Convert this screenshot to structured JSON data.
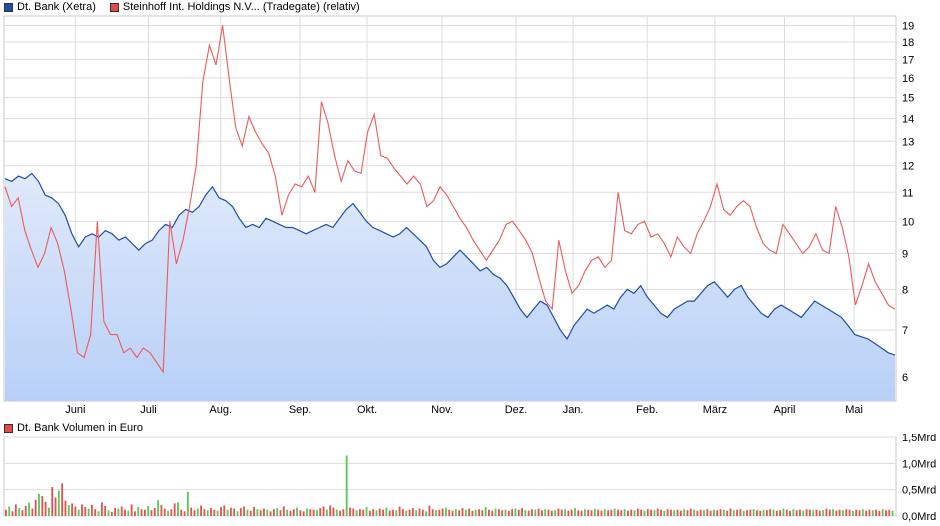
{
  "legend_top": [
    {
      "label": "Dt. Bank (Xetra)",
      "color": "#1f4ea8"
    },
    {
      "label": "Steinhoff Int. Holdings N.V... (Tradegate) (relativ)",
      "color": "#e34a4a"
    }
  ],
  "legend_bottom": [
    {
      "label": "Dt. Bank Volumen in Euro",
      "color": "#e34a4a"
    }
  ],
  "colors": {
    "primary_line": "#1f4ea8",
    "primary_fill_top": "#dfe9fb",
    "primary_fill_bottom": "#b8d0f7",
    "secondary_line": "#ee5a5a",
    "vol_red": "#e05252",
    "vol_green": "#58c858",
    "grid": "#dddddd"
  },
  "chart_data": [
    {
      "type": "line",
      "y_ticks": [
        6,
        7,
        8,
        9,
        10,
        11,
        12,
        13,
        14,
        15,
        16,
        17,
        18,
        19
      ],
      "y_scale": "log",
      "ylim": [
        5.55,
        19.6
      ],
      "month_labels": [
        "Juni",
        "Juli",
        "Aug.",
        "Sep.",
        "Okt.",
        "Nov.",
        "Dez.",
        "Jan.",
        "Feb.",
        "März",
        "April",
        "Mai"
      ],
      "month_positions": [
        0.08,
        0.162,
        0.243,
        0.332,
        0.407,
        0.491,
        0.574,
        0.638,
        0.721,
        0.797,
        0.875,
        0.953
      ],
      "series": [
        {
          "name": "Dt. Bank (Xetra)",
          "area": true,
          "values": [
            11.5,
            11.4,
            11.6,
            11.5,
            11.7,
            11.4,
            10.9,
            10.8,
            10.6,
            10.2,
            9.6,
            9.2,
            9.5,
            9.6,
            9.5,
            9.7,
            9.6,
            9.4,
            9.5,
            9.3,
            9.1,
            9.3,
            9.4,
            9.7,
            9.9,
            9.8,
            10.2,
            10.4,
            10.3,
            10.5,
            10.9,
            11.2,
            10.8,
            10.7,
            10.5,
            10.1,
            9.8,
            9.9,
            9.8,
            10.1,
            10.0,
            9.9,
            9.8,
            9.8,
            9.7,
            9.6,
            9.7,
            9.8,
            9.9,
            9.8,
            10.1,
            10.4,
            10.6,
            10.3,
            10.0,
            9.8,
            9.7,
            9.6,
            9.5,
            9.6,
            9.8,
            9.6,
            9.4,
            9.2,
            8.8,
            8.6,
            8.7,
            8.9,
            9.1,
            8.9,
            8.7,
            8.5,
            8.6,
            8.4,
            8.3,
            8.1,
            7.8,
            7.5,
            7.3,
            7.5,
            7.7,
            7.6,
            7.3,
            7.0,
            6.8,
            7.1,
            7.3,
            7.5,
            7.4,
            7.5,
            7.6,
            7.5,
            7.8,
            8.0,
            7.9,
            8.1,
            7.8,
            7.6,
            7.4,
            7.3,
            7.5,
            7.6,
            7.7,
            7.7,
            7.9,
            8.1,
            8.2,
            8.0,
            7.8,
            8.0,
            8.1,
            7.8,
            7.6,
            7.4,
            7.3,
            7.5,
            7.6,
            7.5,
            7.4,
            7.3,
            7.5,
            7.7,
            7.6,
            7.5,
            7.4,
            7.3,
            7.1,
            6.9,
            6.85,
            6.8,
            6.7,
            6.6,
            6.5,
            6.45
          ]
        },
        {
          "name": "Steinhoff Int. Holdings N.V... (Tradegate) (relativ)",
          "area": false,
          "values": [
            11.2,
            10.5,
            10.8,
            9.7,
            9.1,
            8.6,
            9.0,
            9.8,
            9.3,
            8.5,
            7.5,
            6.5,
            6.4,
            6.9,
            10.0,
            7.2,
            6.9,
            6.9,
            6.5,
            6.6,
            6.4,
            6.6,
            6.5,
            6.3,
            6.1,
            10.0,
            8.7,
            9.4,
            10.5,
            12.0,
            15.8,
            17.8,
            16.7,
            19.0,
            16.0,
            13.6,
            12.8,
            14.1,
            13.4,
            12.9,
            12.5,
            11.6,
            10.2,
            10.9,
            11.3,
            11.2,
            11.6,
            11.0,
            14.8,
            13.8,
            12.4,
            11.4,
            12.2,
            11.8,
            11.7,
            13.4,
            14.2,
            12.4,
            12.3,
            11.9,
            11.6,
            11.3,
            11.6,
            11.3,
            10.5,
            10.7,
            11.2,
            10.9,
            10.5,
            10.1,
            9.8,
            9.4,
            9.1,
            8.8,
            9.1,
            9.4,
            9.9,
            10.0,
            9.7,
            9.4,
            9.0,
            8.3,
            7.7,
            7.5,
            9.4,
            8.5,
            7.9,
            8.1,
            8.5,
            8.8,
            8.9,
            8.6,
            8.8,
            11.0,
            9.7,
            9.6,
            9.9,
            10.0,
            9.5,
            9.6,
            9.3,
            8.9,
            9.5,
            9.2,
            9.0,
            9.6,
            10.0,
            10.5,
            11.3,
            10.4,
            10.2,
            10.5,
            10.7,
            10.5,
            9.8,
            9.3,
            9.1,
            9.0,
            9.9,
            9.6,
            9.3,
            9.0,
            9.2,
            9.6,
            9.1,
            9.0,
            10.5,
            9.8,
            8.9,
            7.6,
            8.1,
            8.7,
            8.2,
            7.9,
            7.6,
            7.5
          ]
        }
      ]
    },
    {
      "type": "bar",
      "title": "Dt. Bank Volumen in Euro",
      "y_ticks": [
        "0,0Mrd",
        "0,5Mrd",
        "1,0Mrd",
        "1,5Mrd"
      ],
      "ylim": [
        0,
        1.5
      ],
      "unit": "Mrd",
      "values": [
        0.12,
        0.18,
        0.09,
        0.22,
        0.15,
        0.11,
        0.19,
        0.25,
        0.14,
        0.31,
        0.42,
        0.38,
        0.27,
        0.16,
        0.55,
        0.35,
        0.48,
        0.62,
        0.29,
        0.21,
        0.24,
        0.18,
        0.12,
        0.22,
        0.17,
        0.14,
        0.21,
        0.13,
        0.09,
        0.26,
        0.19,
        0.11,
        0.08,
        0.15,
        0.14,
        0.18,
        0.12,
        0.1,
        0.22,
        0.09,
        0.17,
        0.13,
        0.12,
        0.19,
        0.11,
        0.15,
        0.3,
        0.21,
        0.14,
        0.1,
        0.13,
        0.24,
        0.26,
        0.12,
        0.09,
        0.46,
        0.16,
        0.11,
        0.14,
        0.2,
        0.13,
        0.11,
        0.15,
        0.12,
        0.1,
        0.17,
        0.2,
        0.12,
        0.16,
        0.14,
        0.09,
        0.15,
        0.18,
        0.12,
        0.1,
        0.17,
        0.13,
        0.11,
        0.14,
        0.12,
        0.09,
        0.13,
        0.15,
        0.11,
        0.18,
        0.12,
        0.1,
        0.13,
        0.16,
        0.11,
        0.09,
        0.14,
        0.13,
        0.12,
        0.11,
        0.15,
        0.18,
        0.12,
        0.2,
        0.16,
        0.12,
        0.1,
        0.13,
        1.15,
        0.16,
        0.14,
        0.11,
        0.13,
        0.12,
        0.17,
        0.1,
        0.13,
        0.11,
        0.14,
        0.12,
        0.16,
        0.1,
        0.12,
        0.11,
        0.18,
        0.13,
        0.1,
        0.12,
        0.15,
        0.11,
        0.14,
        0.12,
        0.09,
        0.2,
        0.13,
        0.11,
        0.12,
        0.14,
        0.16,
        0.12,
        0.1,
        0.13,
        0.11,
        0.15,
        0.12,
        0.14,
        0.1,
        0.12,
        0.13,
        0.11,
        0.17,
        0.12,
        0.1,
        0.14,
        0.13,
        0.11,
        0.12,
        0.1,
        0.13,
        0.14,
        0.12,
        0.15,
        0.11,
        0.1,
        0.13,
        0.12,
        0.14,
        0.11,
        0.13,
        0.12,
        0.1,
        0.11,
        0.14,
        0.12,
        0.13,
        0.1,
        0.12,
        0.15,
        0.11,
        0.1,
        0.13,
        0.12,
        0.11,
        0.14,
        0.12,
        0.1,
        0.13,
        0.11,
        0.12,
        0.14,
        0.12,
        0.11,
        0.13,
        0.1,
        0.12,
        0.11,
        0.14,
        0.12,
        0.1,
        0.13,
        0.12,
        0.11,
        0.14,
        0.12,
        0.1,
        0.13,
        0.12,
        0.11,
        0.12,
        0.1,
        0.13,
        0.11,
        0.14,
        0.12,
        0.1,
        0.12,
        0.11,
        0.13,
        0.1,
        0.12,
        0.11,
        0.13,
        0.12,
        0.1,
        0.14,
        0.11,
        0.12,
        0.13,
        0.1,
        0.11,
        0.12,
        0.13,
        0.11,
        0.1,
        0.12,
        0.11,
        0.13,
        0.12,
        0.1,
        0.11,
        0.14,
        0.12,
        0.1,
        0.13,
        0.11,
        0.12,
        0.1,
        0.13,
        0.12,
        0.11,
        0.12,
        0.1,
        0.11,
        0.14,
        0.12,
        0.13,
        0.1,
        0.12,
        0.11,
        0.13,
        0.12,
        0.1,
        0.12,
        0.11,
        0.13,
        0.1,
        0.12,
        0.11,
        0.12,
        0.1,
        0.13,
        0.11,
        0.12,
        0.1
      ],
      "colors_by_index": "alternating"
    }
  ]
}
